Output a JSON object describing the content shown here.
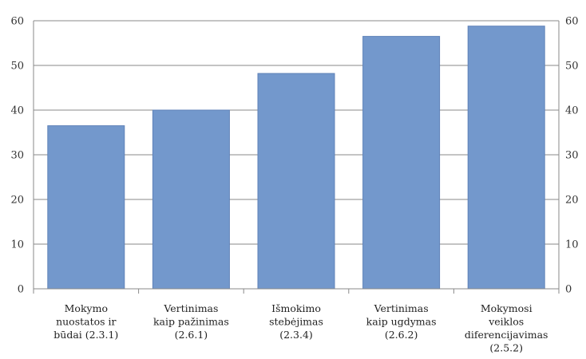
{
  "chart_data": {
    "type": "bar",
    "categories": [
      [
        "Mokymo",
        "nuostatos ir",
        "būdai (2.3.1)"
      ],
      [
        "Vertinimas",
        "kaip pažinimas",
        "(2.6.1)"
      ],
      [
        "Išmokimo",
        "stebėjimas",
        "(2.3.4)"
      ],
      [
        "Vertinimas",
        "kaip ugdymas",
        "(2.6.2)"
      ],
      [
        "Mokymosi",
        "veiklos",
        "diferencijavimas",
        "(2.5.2)"
      ]
    ],
    "values": [
      36.5,
      40,
      48.2,
      56.5,
      58.8
    ],
    "ylim": [
      0,
      60
    ],
    "yticks": [
      0,
      10,
      20,
      30,
      40,
      50,
      60
    ],
    "bar_color": "#7398cc",
    "grid": true,
    "secondary_axis_right": true
  }
}
